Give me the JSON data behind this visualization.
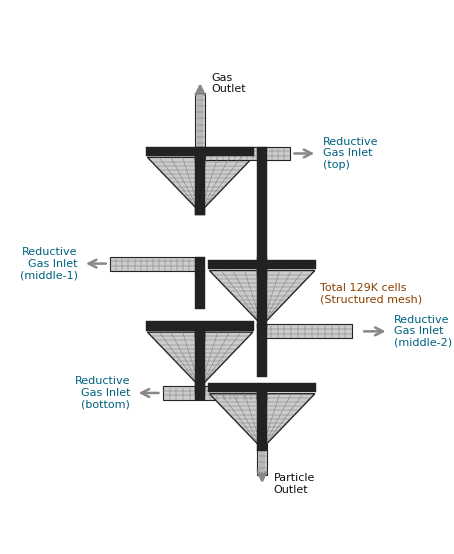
{
  "bg_color": "#ffffff",
  "mesh_color": "#777777",
  "mesh_face_color": "#cccccc",
  "dark_color": "#222222",
  "arrow_color": "#888888",
  "text_color_black": "#111111",
  "text_color_dark_cyan": "#006080",
  "text_color_red_brown": "#8B4000",
  "labels": {
    "gas_outlet": "Gas\nOutlet",
    "particle_outlet": "Particle\nOutlet",
    "reductive_top": "Reductive\nGas Inlet\n(top)",
    "reductive_mid1": "Reductive\nGas Inlet\n(middle-1)",
    "reductive_mid2": "Reductive\nGas Inlet\n(middle-2)",
    "reductive_bottom": "Reductive\nGas Inlet\n(bottom)",
    "mesh_info": "Total 129K cells\n(Structured mesh)"
  },
  "figsize": [
    4.54,
    5.54
  ],
  "dpi": 100
}
